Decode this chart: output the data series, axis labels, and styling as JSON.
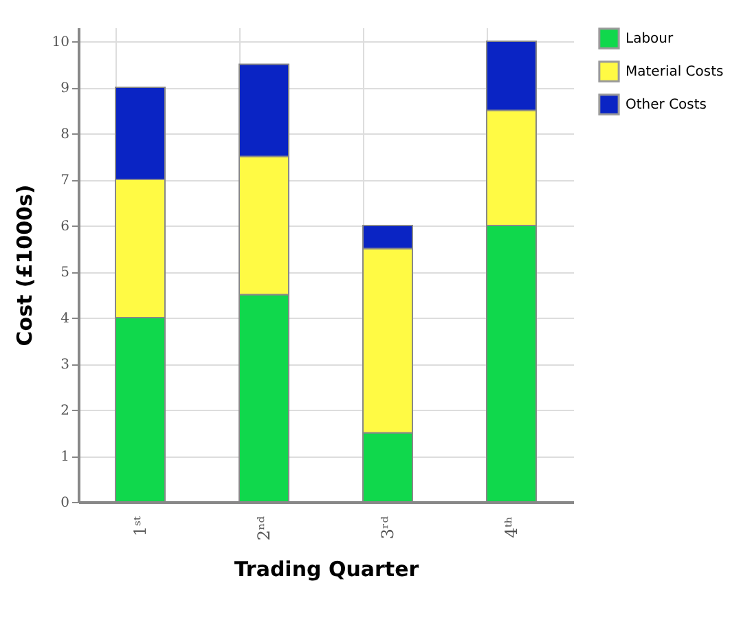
{
  "chart_data": {
    "type": "bar",
    "stacked": true,
    "xlabel": "Trading Quarter",
    "ylabel": "Cost (£1000s)",
    "categories": [
      "1ˢᵗ",
      "2ⁿᵈ",
      "3ʳᵈ",
      "4ᵗʰ"
    ],
    "series": [
      {
        "name": "Labour",
        "color": "#10d84c",
        "values": [
          4,
          4.5,
          1.5,
          6
        ]
      },
      {
        "name": "Material Costs",
        "color": "#fffa44",
        "values": [
          3,
          3,
          4,
          2.5
        ]
      },
      {
        "name": "Other Costs",
        "color": "#0a24c4",
        "values": [
          2,
          2,
          0.5,
          1.5
        ]
      }
    ],
    "ylim": [
      0,
      10.3
    ],
    "yticks": [
      0,
      1,
      2,
      3,
      4,
      5,
      6,
      7,
      8,
      9,
      10
    ],
    "grid": true,
    "legend": "top right"
  }
}
